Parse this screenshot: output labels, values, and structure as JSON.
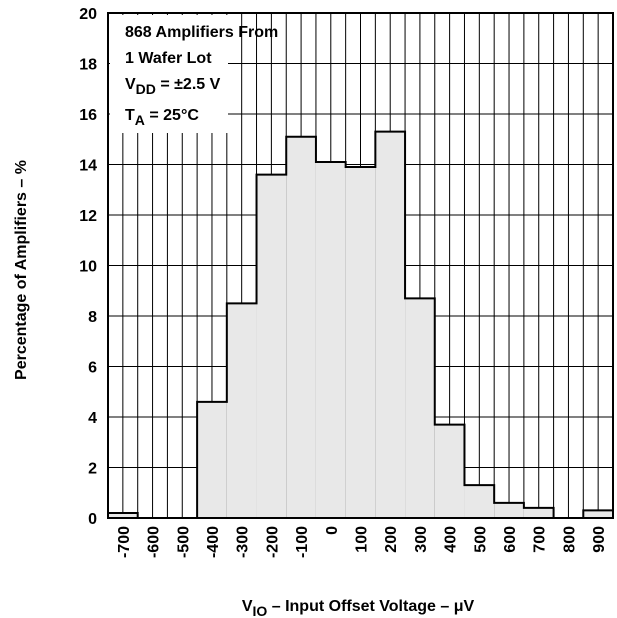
{
  "chart_data": {
    "type": "bar",
    "subtype": "histogram",
    "x_tick_labels": [
      "-700",
      "-600",
      "-500",
      "-400",
      "-300",
      "-200",
      "-100",
      "0",
      "100",
      "200",
      "300",
      "400",
      "500",
      "600",
      "700",
      "800",
      "900"
    ],
    "y_tick_labels": [
      "0",
      "2",
      "4",
      "6",
      "8",
      "10",
      "12",
      "14",
      "16",
      "18",
      "20"
    ],
    "bin_edges": [
      -750,
      -700,
      -650,
      -600,
      -550,
      -500,
      -450,
      -400,
      -350,
      -300,
      -250,
      -200,
      -150,
      -100,
      -50,
      0,
      50,
      100,
      150,
      200,
      250,
      300,
      350,
      400,
      450,
      500,
      550,
      600,
      650,
      700,
      750,
      800,
      850,
      900,
      950
    ],
    "bins": [
      {
        "from": -750,
        "to": -650,
        "value": 0.2
      },
      {
        "from": -650,
        "to": -450,
        "value": 0
      },
      {
        "from": -450,
        "to": -350,
        "value": 4.6
      },
      {
        "from": -350,
        "to": -250,
        "value": 8.5
      },
      {
        "from": -250,
        "to": -150,
        "value": 13.6
      },
      {
        "from": -150,
        "to": -50,
        "value": 15.1
      },
      {
        "from": -50,
        "to": 50,
        "value": 14.1
      },
      {
        "from": 50,
        "to": 150,
        "value": 13.9
      },
      {
        "from": 150,
        "to": 250,
        "value": 15.3
      },
      {
        "from": 250,
        "to": 350,
        "value": 8.7
      },
      {
        "from": 350,
        "to": 450,
        "value": 3.7
      },
      {
        "from": 450,
        "to": 550,
        "value": 1.3
      },
      {
        "from": 550,
        "to": 650,
        "value": 0.6
      },
      {
        "from": 650,
        "to": 750,
        "value": 0.4
      },
      {
        "from": 750,
        "to": 850,
        "value": 0
      },
      {
        "from": 850,
        "to": 950,
        "value": 0.3
      }
    ],
    "xlim": [
      -750,
      950
    ],
    "ylim": [
      0,
      20
    ],
    "grid": true,
    "xlabel": {
      "main": "V",
      "sub": "IO",
      "rest": " – Input Offset Voltage – μV"
    },
    "ylabel": "Percentage of Amplifiers – %",
    "annotation": {
      "line1": "868 Amplifiers From",
      "line2": "1 Wafer Lot",
      "line3_main": "V",
      "line3_sub": "DD",
      "line3_rest": " = ±2.5 V",
      "line4_main": "T",
      "line4_sub": "A",
      "line4_rest": " = 25°C"
    },
    "fill_color": "#e8e8e8",
    "line_color": "#000000"
  }
}
